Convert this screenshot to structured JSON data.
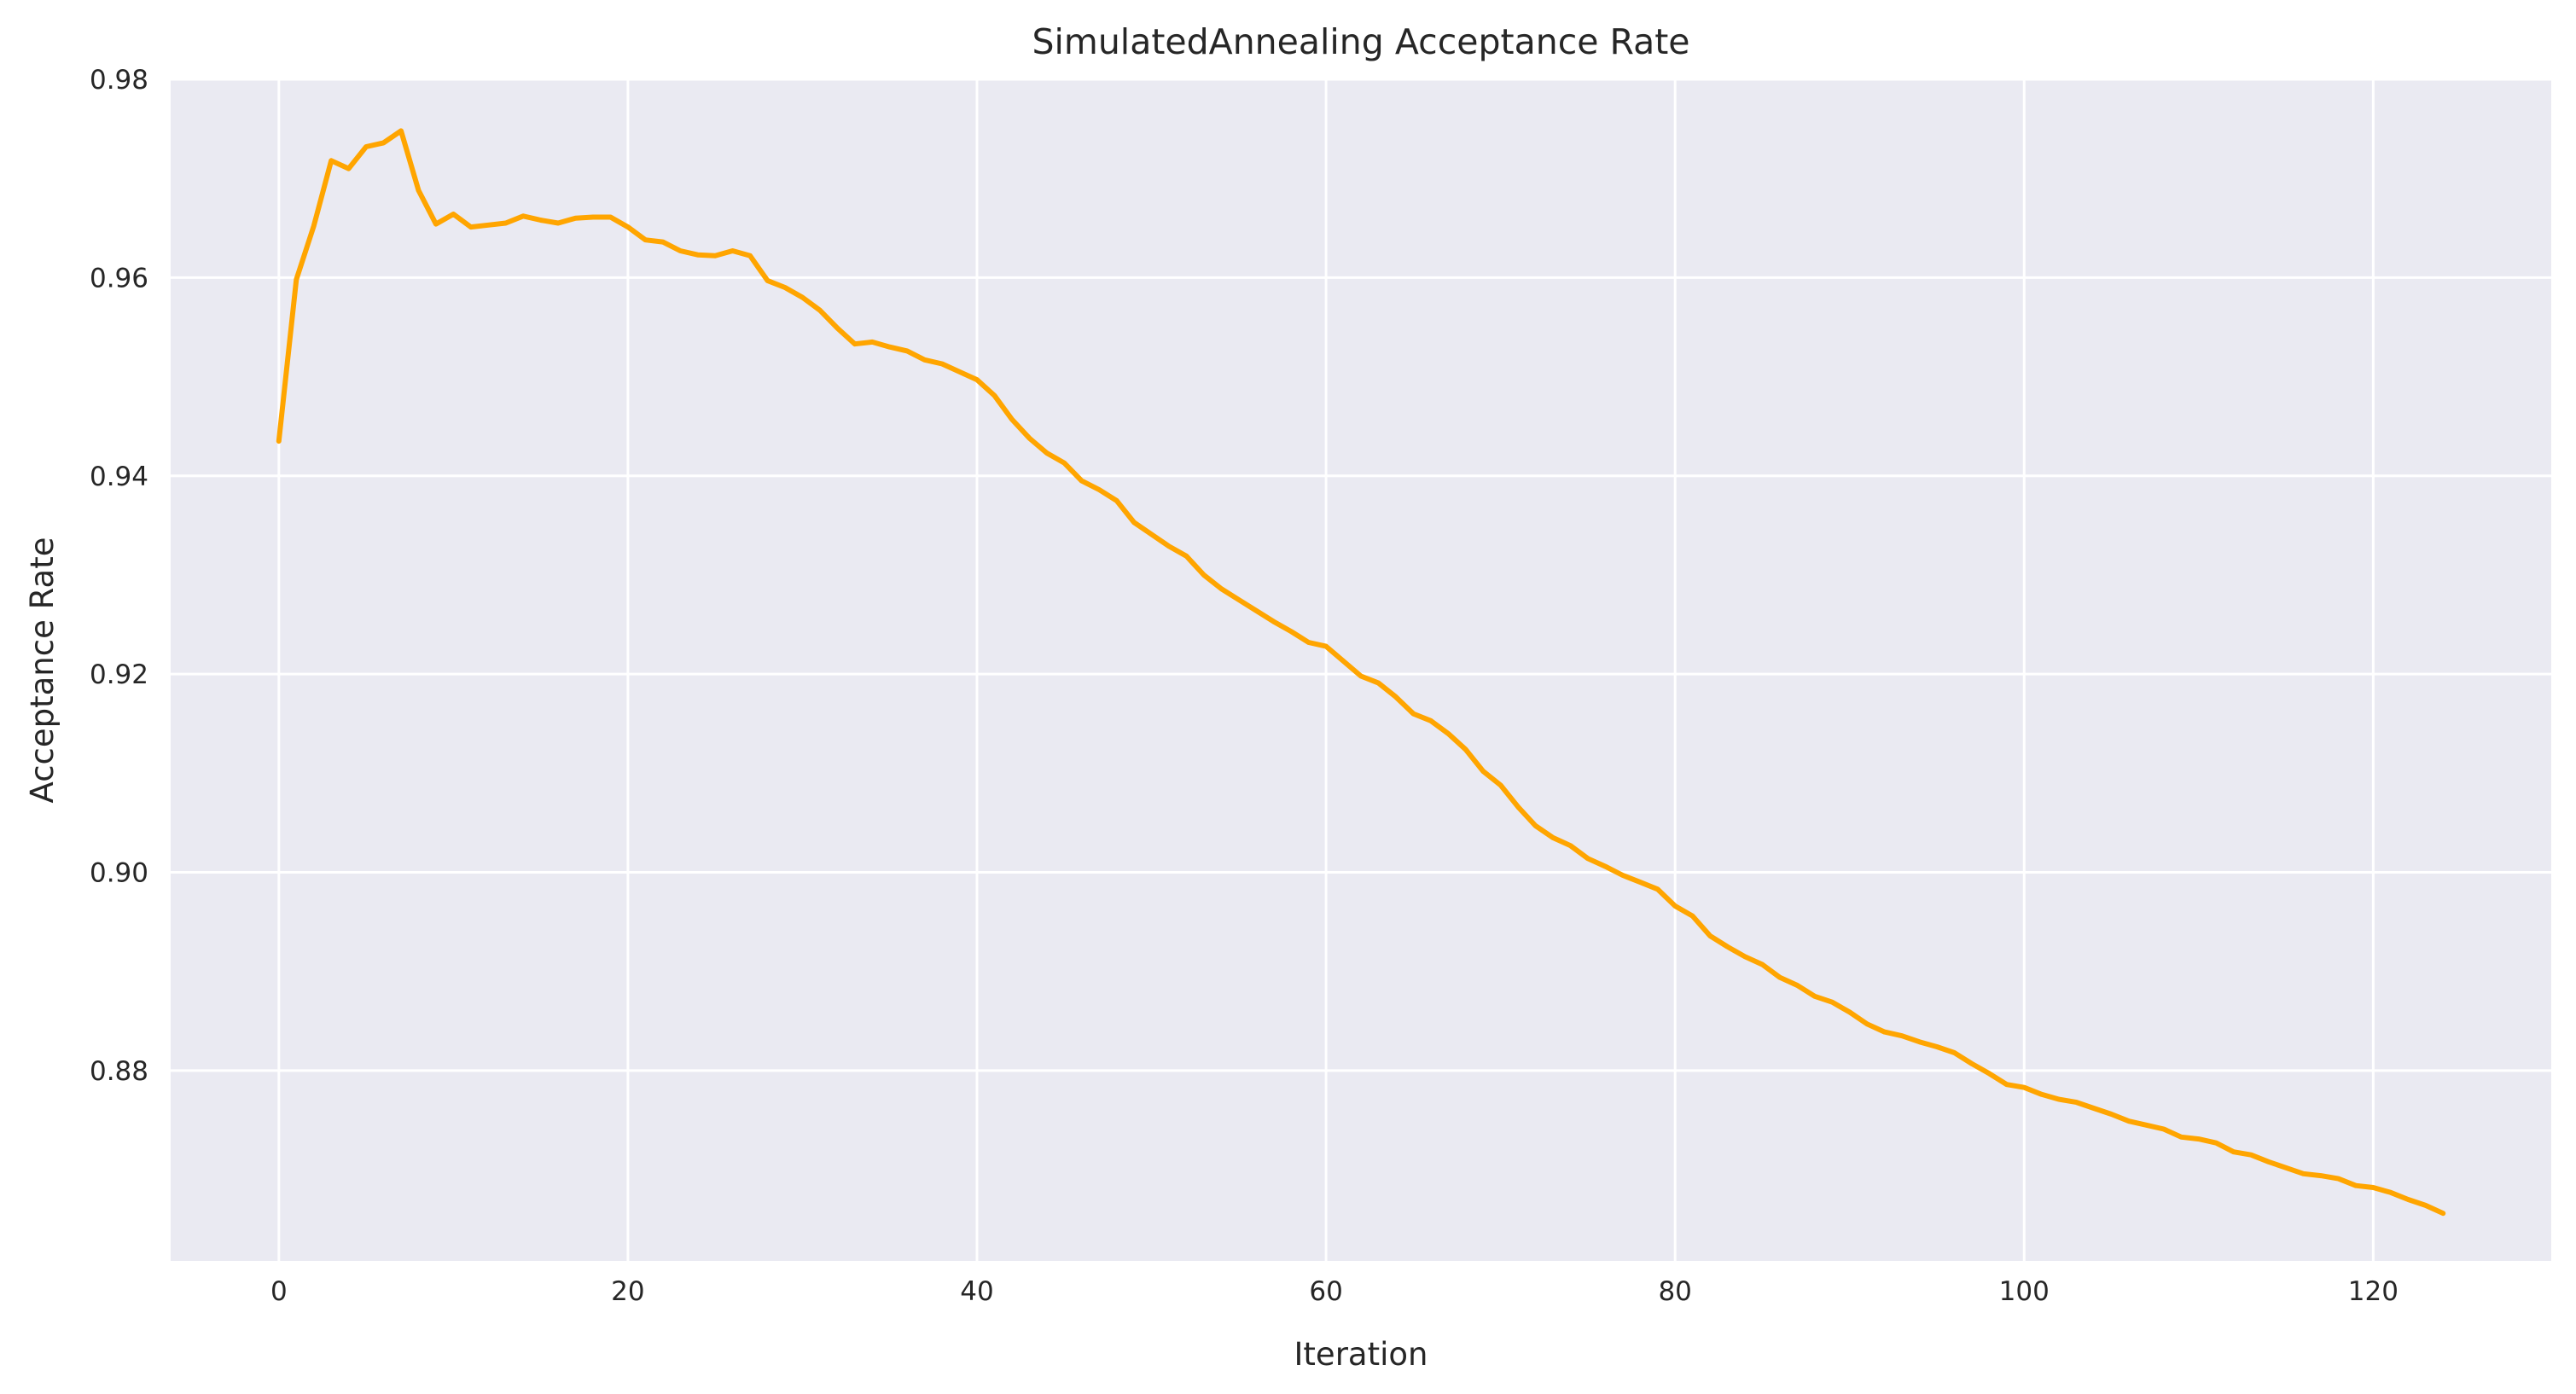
{
  "chart_data": {
    "type": "line",
    "title": "SimulatedAnnealing Acceptance Rate",
    "xlabel": "Iteration",
    "ylabel": "Acceptance Rate",
    "xlim": [
      -6.2,
      130.2
    ],
    "ylim": [
      0.8608,
      0.98
    ],
    "xticks": [
      0,
      20,
      40,
      60,
      80,
      100,
      120
    ],
    "yticks": [
      0.88,
      0.9,
      0.92,
      0.94,
      0.96,
      0.98
    ],
    "xtick_labels": [
      "0",
      "20",
      "40",
      "60",
      "80",
      "100",
      "120"
    ],
    "ytick_labels": [
      "0.88",
      "0.90",
      "0.92",
      "0.94",
      "0.96",
      "0.98"
    ],
    "grid": true,
    "background": "#eaeaf2",
    "grid_color": "#ffffff",
    "series": [
      {
        "color": "#ffa500",
        "x": [
          0,
          1,
          2,
          3,
          4,
          5,
          6,
          7,
          8,
          9,
          10,
          11,
          12,
          13,
          14,
          15,
          16,
          17,
          18,
          19,
          20,
          21,
          22,
          23,
          24,
          25,
          26,
          27,
          28,
          29,
          30,
          31,
          32,
          33,
          34,
          35,
          36,
          37,
          38,
          39,
          40,
          41,
          42,
          43,
          44,
          45,
          46,
          47,
          48,
          49,
          50,
          51,
          52,
          53,
          54,
          55,
          56,
          57,
          58,
          59,
          60,
          61,
          62,
          63,
          64,
          65,
          66,
          67,
          68,
          69,
          70,
          71,
          72,
          73,
          74,
          75,
          76,
          77,
          78,
          79,
          80,
          81,
          82,
          83,
          84,
          85,
          86,
          87,
          88,
          89,
          90,
          91,
          92,
          93,
          94,
          95,
          96,
          97,
          98,
          99,
          100,
          101,
          102,
          103,
          104,
          105,
          106,
          107,
          108,
          109,
          110,
          111,
          112,
          113,
          114,
          115,
          116,
          117,
          118,
          119,
          120,
          121,
          122,
          123,
          124
        ],
        "y": [
          0.9435,
          0.9598,
          0.9652,
          0.9718,
          0.971,
          0.9732,
          0.9736,
          0.9748,
          0.9688,
          0.9654,
          0.9664,
          0.9651,
          0.9653,
          0.9655,
          0.9662,
          0.9658,
          0.9655,
          0.966,
          0.9661,
          0.9661,
          0.9651,
          0.9638,
          0.9636,
          0.9627,
          0.9623,
          0.9622,
          0.9627,
          0.9622,
          0.9597,
          0.959,
          0.958,
          0.9567,
          0.9549,
          0.9533,
          0.9535,
          0.953,
          0.9526,
          0.9517,
          0.9513,
          0.9505,
          0.9497,
          0.9481,
          0.9457,
          0.9438,
          0.9423,
          0.9413,
          0.9395,
          0.9386,
          0.9375,
          0.9353,
          0.9341,
          0.9329,
          0.9319,
          0.93,
          0.9286,
          0.9275,
          0.9264,
          0.9253,
          0.9243,
          0.9232,
          0.9228,
          0.9213,
          0.9198,
          0.9191,
          0.9177,
          0.916,
          0.9153,
          0.914,
          0.9124,
          0.9102,
          0.9088,
          0.9066,
          0.9047,
          0.9035,
          0.9027,
          0.9014,
          0.9006,
          0.8997,
          0.899,
          0.8983,
          0.8966,
          0.8956,
          0.8936,
          0.8925,
          0.8915,
          0.8907,
          0.8894,
          0.8886,
          0.8875,
          0.8869,
          0.8859,
          0.8847,
          0.8839,
          0.8835,
          0.8829,
          0.8824,
          0.8818,
          0.8807,
          0.8797,
          0.8786,
          0.8783,
          0.8776,
          0.8771,
          0.8768,
          0.8762,
          0.8756,
          0.8749,
          0.8745,
          0.8741,
          0.8733,
          0.8731,
          0.8727,
          0.8718,
          0.8715,
          0.8708,
          0.8702,
          0.8696,
          0.8694,
          0.8691,
          0.8684,
          0.8682,
          0.8677,
          0.867,
          0.8664,
          0.8656
        ]
      }
    ]
  }
}
